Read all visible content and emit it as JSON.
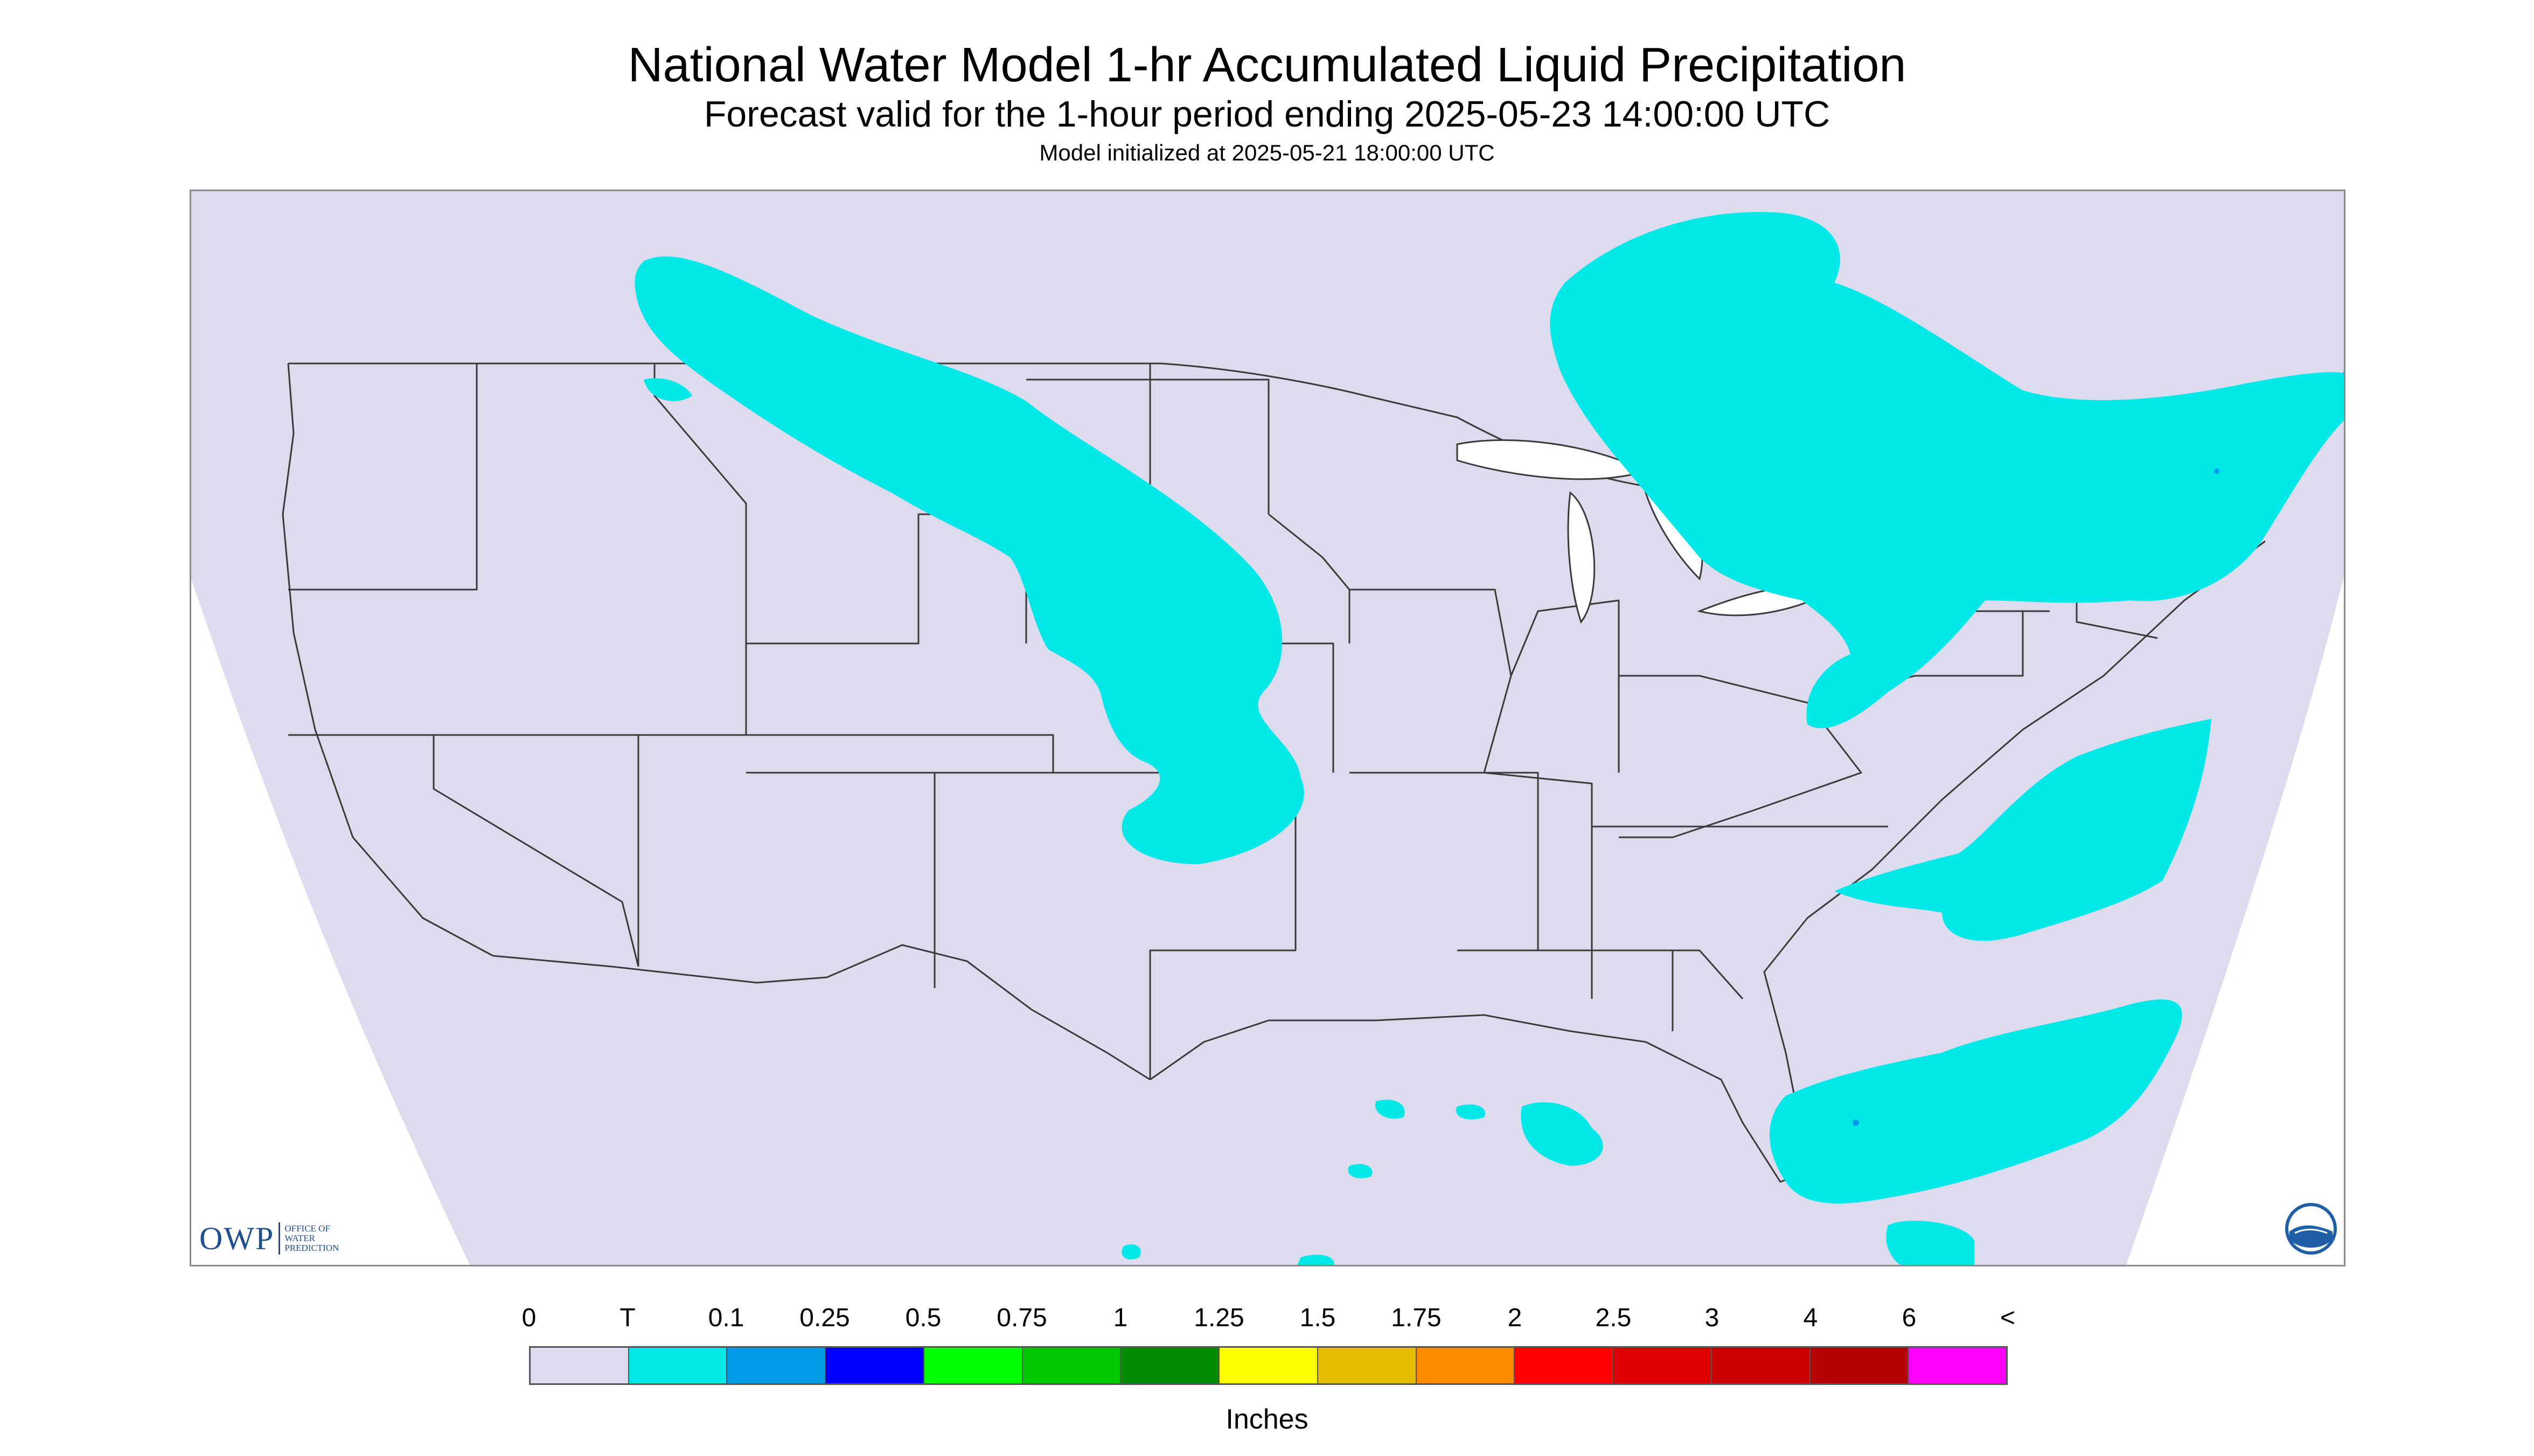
{
  "header": {
    "title": "National Water Model 1-hr Accumulated Liquid Precipitation",
    "subtitle": "Forecast valid for the 1-hour period ending 2025-05-23 14:00:00 UTC",
    "init": "Model initialized at 2025-05-21 18:00:00 UTC"
  },
  "map": {
    "domain_fill_color": "#dcdcee",
    "outside_color": "#ffffff",
    "boundary_color": "#3a3a3a",
    "precip_color": "#00e8e8",
    "precip_heavy_color": "#009ce8"
  },
  "logos": {
    "owp_mark": "OWP",
    "owp_text_line1": "Office of",
    "owp_text_line2": "Water",
    "owp_text_line3": "Prediction",
    "noaa_icon": "noaa-logo-icon"
  },
  "legend": {
    "labels": [
      "0",
      "T",
      "0.1",
      "0.25",
      "0.5",
      "0.75",
      "1",
      "1.25",
      "1.5",
      "1.75",
      "2",
      "2.5",
      "3",
      "4",
      "6",
      "<"
    ],
    "colors": [
      "#dcdcee",
      "#00e8e8",
      "#009ce8",
      "#0000ff",
      "#00ff00",
      "#00c800",
      "#008c00",
      "#ffff00",
      "#e6be00",
      "#ff8c00",
      "#ff0000",
      "#dc0000",
      "#c80000",
      "#b40000",
      "#ff00ff",
      "#9955c9"
    ],
    "units": "Inches"
  }
}
